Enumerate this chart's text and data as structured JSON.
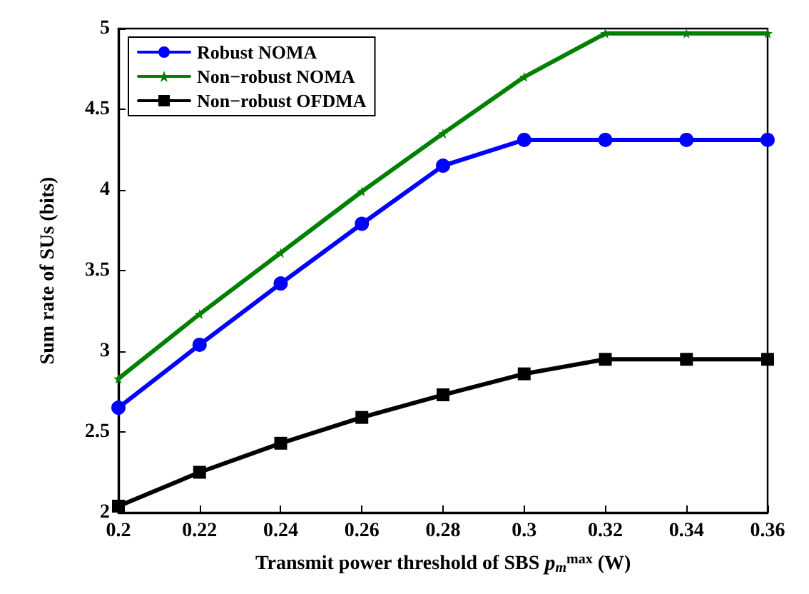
{
  "chart_data": {
    "type": "line",
    "xlabel": "Transmit power threshold of SBS p$_{m}$$^{max}$ (W)",
    "ylabel": "Sum rate of SUs (bits)",
    "x": [
      0.2,
      0.22,
      0.24,
      0.26,
      0.28,
      0.3,
      0.32,
      0.34,
      0.36
    ],
    "series": [
      {
        "name": "Robust NOMA",
        "color": "#0000ff",
        "marker": "circle",
        "values": [
          2.65,
          3.04,
          3.42,
          3.79,
          4.15,
          4.31,
          4.31,
          4.31,
          4.31
        ]
      },
      {
        "name": "Non−robust NOMA",
        "color": "#008000",
        "marker": "star",
        "values": [
          2.83,
          3.23,
          3.61,
          3.99,
          4.35,
          4.7,
          4.97,
          4.97,
          4.97
        ]
      },
      {
        "name": "Non−robust OFDMA",
        "color": "#000000",
        "marker": "square",
        "values": [
          2.04,
          2.25,
          2.43,
          2.59,
          2.73,
          2.86,
          2.95,
          2.95,
          2.95
        ]
      }
    ],
    "xlim": [
      0.2,
      0.36
    ],
    "xticks": [
      0.2,
      0.22,
      0.24,
      0.26,
      0.28,
      0.3,
      0.32,
      0.34,
      0.36
    ],
    "ylim": [
      2,
      5
    ],
    "yticks": [
      2,
      2.5,
      3,
      3.5,
      4,
      4.5,
      5
    ],
    "grid": false,
    "legend": "top left",
    "line_style": "solid"
  }
}
